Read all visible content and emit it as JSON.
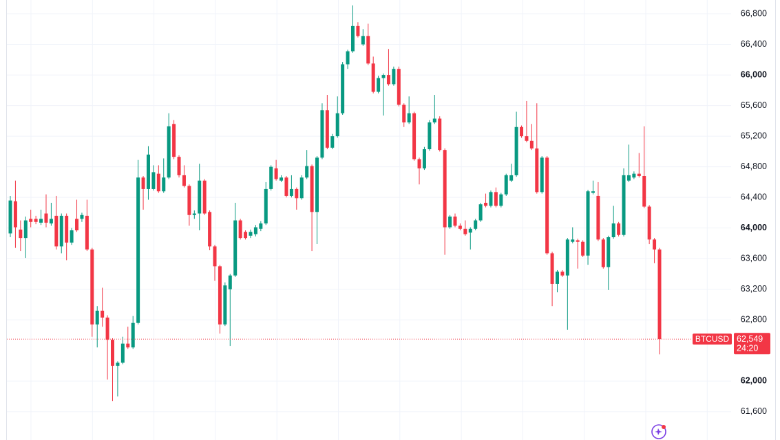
{
  "chart_data": {
    "type": "candlestick",
    "symbol": "BTCUSD",
    "countdown": "24:20",
    "last_price": {
      "value": 62549,
      "label": "62,549"
    },
    "up_color": "#089981",
    "down_color": "#f23645",
    "grid": true,
    "ylim": [
      61230,
      66980
    ],
    "yticks": [
      {
        "value": 61600,
        "label": "61,600"
      },
      {
        "value": 62000,
        "label": "62,000"
      },
      {
        "value": 62800,
        "label": "62,800"
      },
      {
        "value": 63200,
        "label": "63,200"
      },
      {
        "value": 63600,
        "label": "63,600"
      },
      {
        "value": 64000,
        "label": "64,000"
      },
      {
        "value": 64400,
        "label": "64,400"
      },
      {
        "value": 64800,
        "label": "64,800"
      },
      {
        "value": 65200,
        "label": "65,200"
      },
      {
        "value": 65600,
        "label": "65,600"
      },
      {
        "value": 66000,
        "label": "66,000"
      },
      {
        "value": 66400,
        "label": "66,400"
      },
      {
        "value": 66800,
        "label": "66,800"
      }
    ],
    "open": [
      63930,
      64350,
      63980,
      63870,
      64120,
      64120,
      64070,
      64190,
      64060,
      64160,
      63760,
      64160,
      63810,
      64120,
      64120,
      64160,
      63720,
      62740,
      62920,
      62830,
      62540,
      62200,
      62240,
      62490,
      62440,
      62760,
      64660,
      64510,
      64510,
      64710,
      64480,
      64660,
      65360,
      64930,
      64690,
      64550,
      64170,
      64190,
      64620,
      64210,
      63760,
      63500,
      62740,
      63200,
      63380,
      64100,
      63950,
      63900,
      63920,
      63990,
      64060,
      64510,
      64780,
      64620,
      64660,
      64420,
      64510,
      64390,
      64660,
      64810,
      64210,
      64920,
      65540,
      65050,
      65200,
      65500,
      66140,
      66310,
      66640,
      66400,
      66510,
      66150,
      65780,
      65960,
      66000,
      65880,
      66080,
      65610,
      65380,
      65500,
      64900,
      64780,
      65030,
      65380,
      65430,
      65020,
      64010,
      64150,
      64030,
      63990,
      63940,
      63990,
      64100,
      64330,
      64290,
      64470,
      64290,
      64440,
      64620,
      64690,
      65320,
      65200,
      65140,
      65040,
      64470,
      64920,
      63670,
      63270,
      63430,
      63380,
      63820,
      63840,
      63820,
      63640,
      64460,
      64420,
      63850,
      63490,
      63880,
      64060,
      63910,
      64620,
      64660,
      64710,
      64680,
      64280,
      63850,
      63720
    ],
    "high": [
      64420,
      64620,
      64100,
      64150,
      64240,
      64160,
      64240,
      64440,
      64330,
      64420,
      64190,
      64190,
      64000,
      64370,
      64200,
      64370,
      63740,
      62980,
      63220,
      62860,
      62560,
      62260,
      62580,
      62710,
      62850,
      64890,
      64680,
      65070,
      64820,
      64820,
      64910,
      65500,
      65410,
      64950,
      64820,
      64570,
      64230,
      64840,
      64640,
      64230,
      63780,
      63520,
      63290,
      63400,
      64330,
      64120,
      63970,
      63980,
      64040,
      64090,
      64600,
      64820,
      64890,
      64690,
      64680,
      64690,
      64530,
      64690,
      65020,
      64830,
      64940,
      65630,
      65740,
      65230,
      65720,
      66170,
      66330,
      66910,
      66690,
      66600,
      66670,
      66240,
      65990,
      66020,
      66340,
      66110,
      66110,
      65630,
      65720,
      65520,
      64920,
      65060,
      65410,
      65740,
      65460,
      65040,
      64170,
      64190,
      64060,
      64100,
      64010,
      64120,
      64330,
      64450,
      64490,
      64530,
      64460,
      64710,
      64840,
      65520,
      65340,
      65660,
      65360,
      65630,
      64940,
      64940,
      63690,
      63450,
      63450,
      63870,
      64010,
      63860,
      63840,
      64500,
      64620,
      64600,
      63870,
      63900,
      64290,
      64080,
      64780,
      65090,
      64740,
      64980,
      65330,
      64300,
      63870,
      63740
    ],
    "low": [
      63880,
      63740,
      63700,
      63610,
      64010,
      64050,
      64040,
      64010,
      64030,
      63720,
      63670,
      63580,
      63780,
      63950,
      64080,
      63700,
      62580,
      62440,
      62710,
      62020,
      61740,
      61800,
      62220,
      62420,
      62420,
      62740,
      64240,
      64370,
      64490,
      64460,
      64460,
      64640,
      64900,
      64660,
      64530,
      64030,
      64120,
      63970,
      64170,
      63710,
      63310,
      62620,
      62720,
      62460,
      63360,
      63850,
      63850,
      63870,
      63890,
      63960,
      64040,
      64490,
      64620,
      64600,
      64400,
      64400,
      64240,
      64370,
      64640,
      63700,
      63790,
      64900,
      65030,
      65030,
      65180,
      65480,
      66080,
      66290,
      66490,
      66380,
      66130,
      65760,
      65760,
      65470,
      65860,
      65860,
      65590,
      65320,
      65360,
      64880,
      64570,
      64760,
      65010,
      65360,
      65000,
      63650,
      63990,
      64010,
      63970,
      63900,
      63720,
      63970,
      64080,
      64270,
      64270,
      64270,
      64270,
      64420,
      64600,
      64670,
      65180,
      65120,
      65020,
      64450,
      64450,
      63650,
      62980,
      63160,
      63360,
      62670,
      63800,
      63470,
      63620,
      63520,
      64440,
      63830,
      63470,
      63190,
      63860,
      63890,
      63890,
      64600,
      64640,
      64660,
      64260,
      63790,
      63540,
      62350
    ],
    "close": [
      64360,
      64010,
      63870,
      64100,
      64080,
      64080,
      64120,
      64070,
      64120,
      63760,
      64160,
      63810,
      63970,
      63970,
      64170,
      63720,
      62740,
      62920,
      62830,
      62540,
      62200,
      62240,
      62490,
      62440,
      62760,
      64660,
      64510,
      64960,
      64730,
      64480,
      64660,
      65330,
      64930,
      64690,
      64550,
      64170,
      64190,
      64620,
      64190,
      63760,
      63500,
      62740,
      63250,
      63380,
      64100,
      63870,
      63870,
      63950,
      64010,
      64060,
      64510,
      64800,
      64640,
      64660,
      64420,
      64510,
      64390,
      64660,
      64810,
      64210,
      64920,
      65540,
      65050,
      65200,
      65500,
      66140,
      66310,
      66640,
      66510,
      66510,
      66150,
      65780,
      65960,
      66000,
      65880,
      66080,
      65610,
      65380,
      65500,
      64900,
      64780,
      65030,
      65380,
      65430,
      65020,
      64010,
      64150,
      64030,
      63990,
      63920,
      63990,
      64100,
      64310,
      64290,
      64470,
      64290,
      64440,
      64690,
      64690,
      65320,
      65200,
      65140,
      65040,
      64470,
      64920,
      63670,
      63270,
      63430,
      63380,
      63850,
      63850,
      63820,
      63640,
      64480,
      64480,
      63850,
      63490,
      63880,
      64060,
      63910,
      64690,
      64690,
      64710,
      64680,
      64280,
      63850,
      63720,
      62549
    ]
  }
}
